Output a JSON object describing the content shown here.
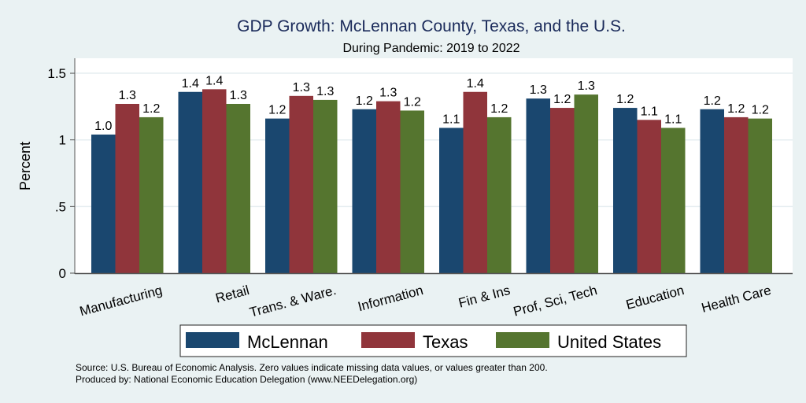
{
  "chart_data": {
    "type": "bar",
    "title": "GDP Growth: McLennan County, Texas, and the U.S.",
    "subtitle": "During Pandemic: 2019 to 2022",
    "ylabel": "Percent",
    "xlabel": "",
    "ylim": [
      0,
      1.6
    ],
    "yticks": [
      0,
      0.5,
      1,
      1.5
    ],
    "ytick_labels": [
      "0",
      ".5",
      "1",
      "1.5"
    ],
    "grid": true,
    "legend_position": "bottom",
    "categories": [
      "Manufacturing",
      "Retail",
      "Trans. & Ware.",
      "Information",
      "Fin & Ins",
      "Prof, Sci, Tech",
      "Education",
      "Health Care"
    ],
    "series": [
      {
        "name": "McLennan",
        "color": "#1a476f",
        "values": [
          1.04,
          1.36,
          1.16,
          1.23,
          1.09,
          1.31,
          1.24,
          1.23
        ],
        "labels": [
          "1.0",
          "1.4",
          "1.2",
          "1.2",
          "1.1",
          "1.3",
          "1.2",
          "1.2"
        ]
      },
      {
        "name": "Texas",
        "color": "#90353b",
        "values": [
          1.27,
          1.38,
          1.33,
          1.29,
          1.36,
          1.24,
          1.15,
          1.17
        ],
        "labels": [
          "1.3",
          "1.4",
          "1.3",
          "1.3",
          "1.4",
          "1.2",
          "1.1",
          "1.2"
        ]
      },
      {
        "name": "United States",
        "color": "#55752f",
        "values": [
          1.17,
          1.27,
          1.3,
          1.22,
          1.17,
          1.34,
          1.09,
          1.16
        ],
        "labels": [
          "1.2",
          "1.3",
          "1.3",
          "1.2",
          "1.2",
          "1.3",
          "1.1",
          "1.2"
        ]
      }
    ],
    "notes": [
      "Source: U.S. Bureau of Economic Analysis. Zero values indicate missing data values, or values greater than 200.",
      "Produced by: National Economic Education Delegation (www.NEEDelegation.org)"
    ]
  }
}
